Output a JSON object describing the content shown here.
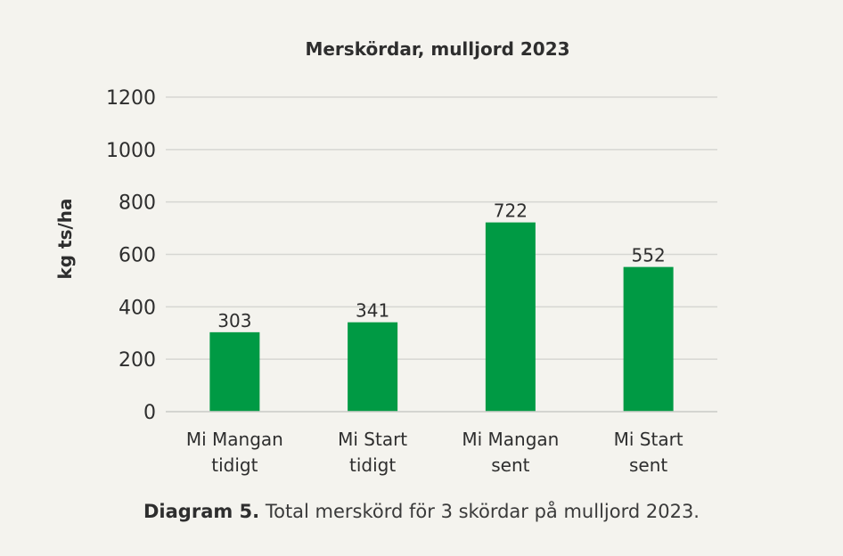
{
  "chart_data": {
    "type": "bar",
    "title": "Merskördar, mulljord 2023",
    "ylabel": "kg ts/ha",
    "xlabel": "",
    "ylim": [
      0,
      1200
    ],
    "yticks": [
      0,
      200,
      400,
      600,
      800,
      1000,
      1200
    ],
    "grid": true,
    "categories": [
      [
        "Mi Mangan",
        "tidigt"
      ],
      [
        "Mi Start",
        "tidigt"
      ],
      [
        "Mi Mangan",
        "sent"
      ],
      [
        "Mi Start",
        "sent"
      ]
    ],
    "values": [
      303,
      341,
      722,
      552
    ],
    "data_labels": [
      "303",
      "341",
      "722",
      "552"
    ],
    "bar_color": "#009a44"
  },
  "caption": {
    "label": "Diagram 5.",
    "text": " Total merskörd för 3 skördar på mulljord 2023."
  }
}
